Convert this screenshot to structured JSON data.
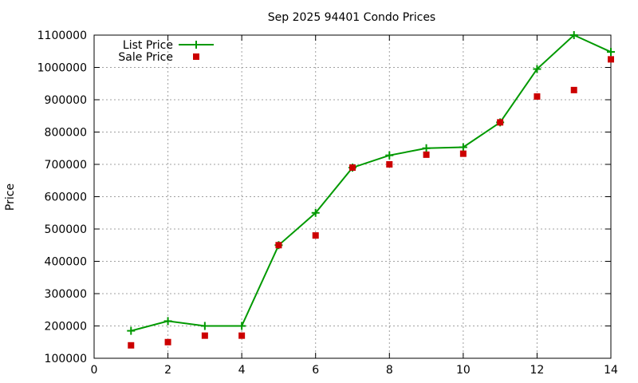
{
  "chart_data": {
    "type": "line",
    "title": "Sep 2025 94401 Condo Prices",
    "xlabel": "",
    "ylabel": "Price",
    "xlim": [
      0,
      14
    ],
    "ylim": [
      100000,
      1100000
    ],
    "xticks": [
      0,
      2,
      4,
      6,
      8,
      10,
      12,
      14
    ],
    "yticks": [
      100000,
      200000,
      300000,
      400000,
      500000,
      600000,
      700000,
      800000,
      900000,
      1000000,
      1100000
    ],
    "grid": true,
    "legend_position": "top-left",
    "series": [
      {
        "name": "List Price",
        "style": "line-with-plus-markers",
        "color": "#009900",
        "points": [
          [
            1,
            185000
          ],
          [
            2,
            215000
          ],
          [
            3,
            200000
          ],
          [
            4,
            200000
          ],
          [
            5,
            450000
          ],
          [
            6,
            550000
          ],
          [
            7,
            690000
          ],
          [
            8,
            728000
          ],
          [
            9,
            750000
          ],
          [
            10,
            753000
          ],
          [
            11,
            830000
          ],
          [
            12,
            995000
          ],
          [
            13,
            1100000
          ],
          [
            14,
            1048000
          ]
        ]
      },
      {
        "name": "Sale Price",
        "style": "square-markers",
        "color": "#cc0000",
        "points": [
          [
            1,
            140000
          ],
          [
            2,
            150000
          ],
          [
            3,
            170000
          ],
          [
            4,
            170000
          ],
          [
            5,
            450000
          ],
          [
            6,
            480000
          ],
          [
            7,
            690000
          ],
          [
            8,
            700000
          ],
          [
            9,
            730000
          ],
          [
            10,
            733000
          ],
          [
            11,
            830000
          ],
          [
            12,
            910000
          ],
          [
            13,
            930000
          ],
          [
            14,
            1025000
          ]
        ]
      }
    ]
  }
}
